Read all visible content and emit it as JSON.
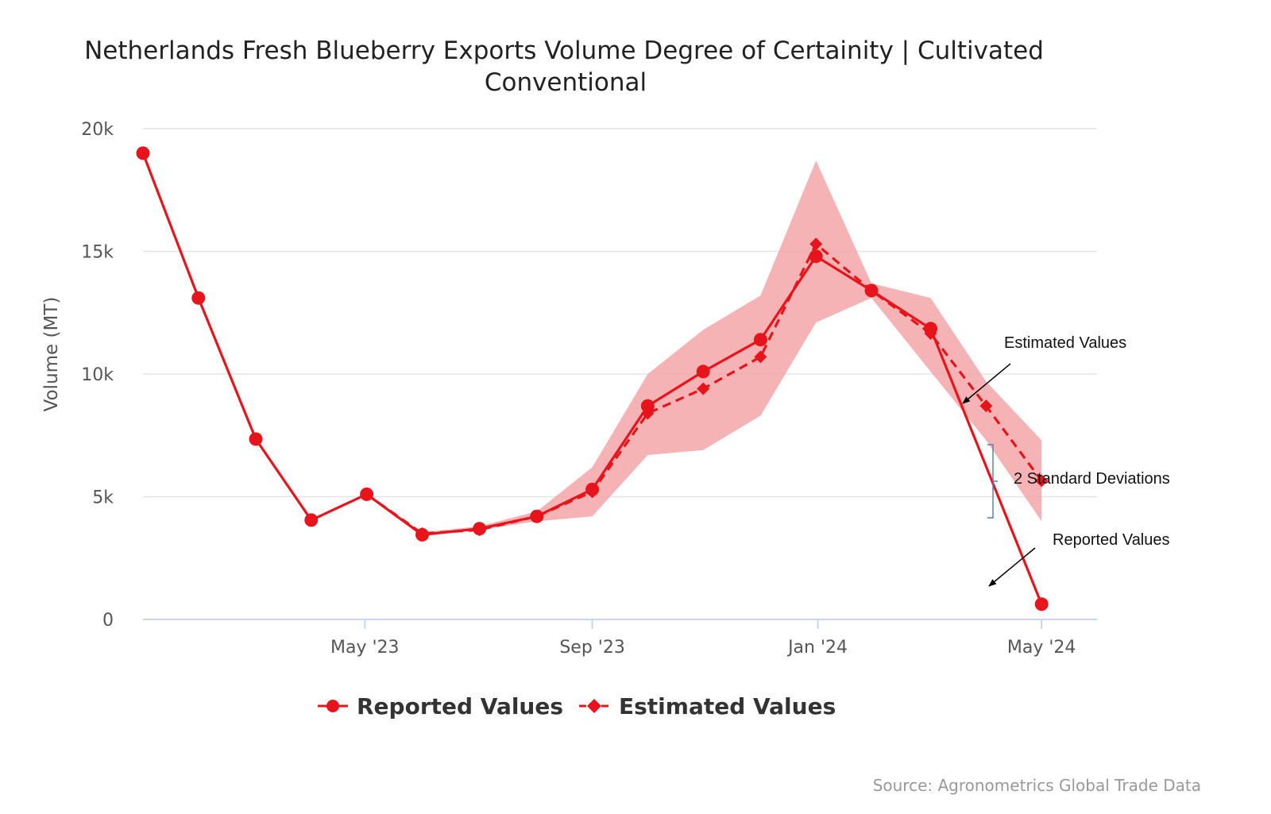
{
  "chart_data": {
    "type": "line",
    "title_line1": "Netherlands Fresh Blueberry Exports Volume Degree of Certainity | Cultivated",
    "title_line2": "Conventional",
    "ylabel": "Volume (MT)",
    "xlabel": "",
    "ylim": [
      0,
      20000
    ],
    "y_ticks": [
      {
        "value": 0,
        "label": "0"
      },
      {
        "value": 5000,
        "label": "5k"
      },
      {
        "value": 10000,
        "label": "10k"
      },
      {
        "value": 15000,
        "label": "15k"
      },
      {
        "value": 20000,
        "label": "20k"
      }
    ],
    "x_ticks": [
      {
        "date": "2023-05-01",
        "label": "May '23"
      },
      {
        "date": "2023-09-01",
        "label": "Sep '23"
      },
      {
        "date": "2024-01-01",
        "label": "Jan '24"
      },
      {
        "date": "2024-05-01",
        "label": "May '24"
      }
    ],
    "grid": "horizontal",
    "legend_position": "bottom-center",
    "colors": {
      "line": "#e8141b",
      "band": "#f4a6a9",
      "grid": "#e3e3e3",
      "axis": "#c8d6ee",
      "bracket": "#4a7fb5"
    },
    "series": [
      {
        "name": "Reported Values",
        "marker": "circle",
        "line_style": "solid",
        "x": [
          "2023-01-01",
          "2023-01-31",
          "2023-03-03",
          "2023-04-02",
          "2023-05-02",
          "2023-06-01",
          "2023-07-02",
          "2023-08-02",
          "2023-09-01",
          "2023-10-01",
          "2023-10-31",
          "2023-12-01",
          "2023-12-31",
          "2024-01-30",
          "2024-03-02",
          "2024-04-01",
          "2024-05-01"
        ],
        "values": [
          19000,
          13100,
          7350,
          4050,
          5100,
          3450,
          3700,
          4200,
          5300,
          8700,
          10100,
          11400,
          14800,
          13400,
          11850,
          null,
          620
        ]
      },
      {
        "name": "Estimated Values",
        "marker": "diamond",
        "line_style": "dashed",
        "x": [
          "2023-05-02",
          "2023-06-01",
          "2023-07-02",
          "2023-08-02",
          "2023-09-01",
          "2023-10-01",
          "2023-10-31",
          "2023-12-01",
          "2023-12-31",
          "2024-01-30",
          "2024-03-02",
          "2024-04-01",
          "2024-05-01"
        ],
        "values": [
          5100,
          3500,
          3650,
          4200,
          5200,
          8400,
          9400,
          10700,
          15300,
          13400,
          11650,
          8700,
          5650
        ]
      },
      {
        "name": "2 Standard Deviations",
        "type": "area-range",
        "x": [
          "2023-05-02",
          "2023-06-01",
          "2023-07-02",
          "2023-08-02",
          "2023-09-01",
          "2023-10-01",
          "2023-10-31",
          "2023-12-01",
          "2023-12-31",
          "2024-01-30",
          "2024-03-02",
          "2024-04-01",
          "2024-05-01"
        ],
        "low": [
          5100,
          3450,
          3650,
          4000,
          4200,
          6700,
          6900,
          8300,
          12100,
          13100,
          10100,
          7300,
          4000
        ],
        "high": [
          5100,
          3550,
          3800,
          4400,
          6200,
          10000,
          11800,
          13200,
          18700,
          13700,
          13100,
          9700,
          7300
        ]
      }
    ],
    "annotations": [
      {
        "label": "Estimated Values"
      },
      {
        "label": "2 Standard Deviations"
      },
      {
        "label": "Reported Values"
      }
    ],
    "source": "Source: Agronometrics Global Trade Data"
  }
}
